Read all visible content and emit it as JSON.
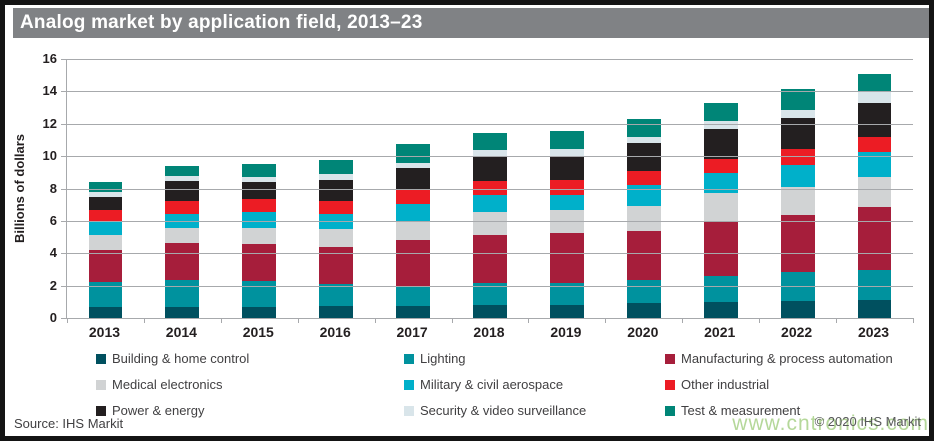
{
  "title": "Analog market by application field, 2013–23",
  "watermark": "www.cntronics.com",
  "footer": {
    "source": "Source: IHS Markit",
    "copyright": "© 2020 IHS Markit"
  },
  "colors": {
    "frame_border": "#141414",
    "title_bar_bg": "#808285",
    "title_text": "#ffffff",
    "grid": "#a7a9ac",
    "axis_text": "#231f20",
    "legend_text": "#414042",
    "source_text": "#414042",
    "copyright_text": "#58595b",
    "watermark_text": "#b5d89a"
  },
  "chart_data": {
    "type": "bar",
    "stacked": true,
    "title": "Analog market by application field, 2013–23",
    "xlabel": "",
    "ylabel": "Billions of dollars",
    "ylim": [
      0,
      16
    ],
    "ytick_step": 2,
    "grid": true,
    "legend_position": "bottom",
    "categories": [
      "2013",
      "2014",
      "2015",
      "2016",
      "2017",
      "2018",
      "2019",
      "2020",
      "2021",
      "2022",
      "2023"
    ],
    "series": [
      {
        "name": "Building & home control",
        "color": "#00505f",
        "values": [
          0.7,
          0.7,
          0.7,
          0.75,
          0.75,
          0.8,
          0.8,
          0.9,
          1.0,
          1.05,
          1.1
        ]
      },
      {
        "name": "Lighting",
        "color": "#00929e",
        "values": [
          1.5,
          1.65,
          1.6,
          1.35,
          1.15,
          1.35,
          1.35,
          1.45,
          1.6,
          1.8,
          1.85
        ]
      },
      {
        "name": "Manufacturing & process automation",
        "color": "#a61e3b",
        "values": [
          2.0,
          2.3,
          2.25,
          2.3,
          2.9,
          3.0,
          3.1,
          3.0,
          3.35,
          3.5,
          3.9
        ]
      },
      {
        "name": "Medical electronics",
        "color": "#d1d3d4",
        "values": [
          0.9,
          0.9,
          1.0,
          1.1,
          1.15,
          1.4,
          1.4,
          1.6,
          1.75,
          1.75,
          1.85
        ]
      },
      {
        "name": "Military & civil aerospace",
        "color": "#00b0ca",
        "values": [
          0.85,
          0.9,
          1.0,
          0.95,
          1.1,
          1.05,
          0.95,
          1.25,
          1.25,
          1.35,
          1.55
        ]
      },
      {
        "name": "Other industrial",
        "color": "#ec1c24",
        "values": [
          0.75,
          0.8,
          0.8,
          0.8,
          0.85,
          0.85,
          0.95,
          0.9,
          0.9,
          1.0,
          0.95
        ]
      },
      {
        "name": "Power & energy",
        "color": "#231f20",
        "values": [
          0.8,
          1.2,
          1.05,
          1.3,
          1.35,
          1.55,
          1.45,
          1.7,
          1.8,
          1.9,
          2.1
        ]
      },
      {
        "name": "Security & video surveillance",
        "color": "#d9e5ea",
        "values": [
          0.3,
          0.3,
          0.3,
          0.35,
          0.35,
          0.4,
          0.45,
          0.4,
          0.5,
          0.5,
          0.65
        ]
      },
      {
        "name": "Test & measurement",
        "color": "#008577",
        "values": [
          0.6,
          0.65,
          0.8,
          0.85,
          1.15,
          1.05,
          1.1,
          1.1,
          1.15,
          1.3,
          1.15
        ]
      }
    ]
  }
}
